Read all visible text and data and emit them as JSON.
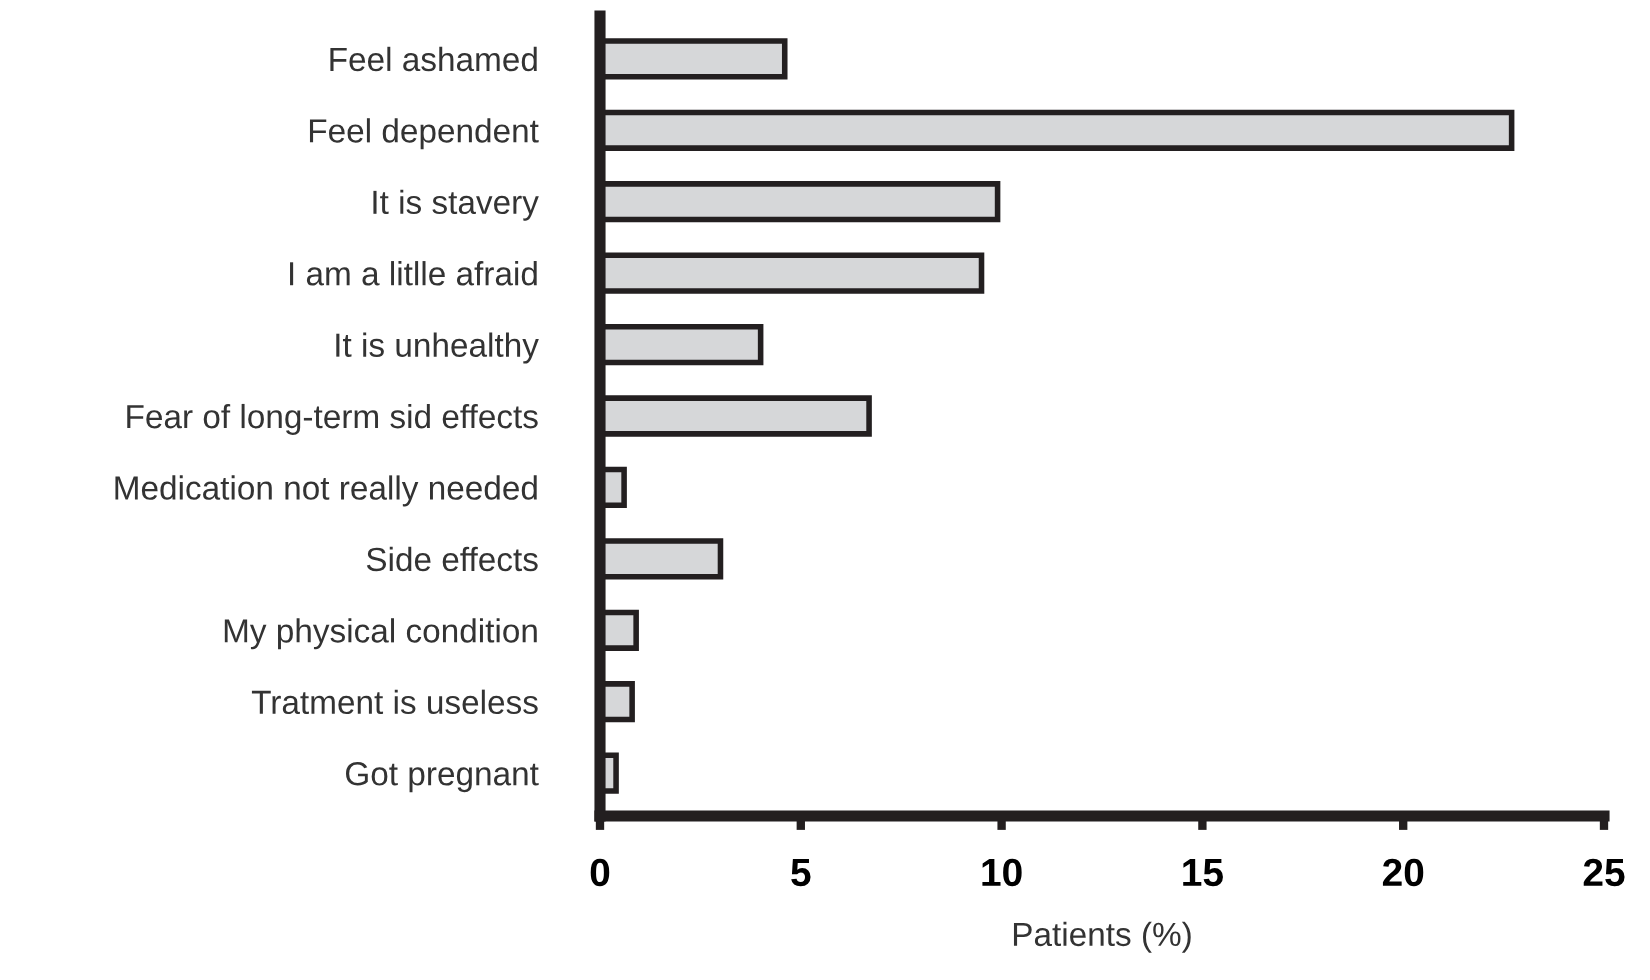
{
  "chart_data": {
    "type": "bar",
    "orientation": "horizontal",
    "xlabel": "Patients (%)",
    "categories": [
      "Feel ashamed",
      "Feel dependent",
      "It is stavery",
      "I am a litlle afraid",
      "It is unhealthy",
      "Fear of long-term sid effects",
      "Medication not really needed",
      "Side effects",
      "My physical condition",
      "Tratment is useless",
      "Got pregnant"
    ],
    "values": [
      4.6,
      22.7,
      9.9,
      9.5,
      4.0,
      6.7,
      0.6,
      3.0,
      0.9,
      0.8,
      0.4
    ],
    "color": "#d6d7d9",
    "xlim": [
      0,
      25
    ],
    "xticks": [
      0,
      5,
      10,
      15,
      20,
      25
    ],
    "grid": false
  }
}
